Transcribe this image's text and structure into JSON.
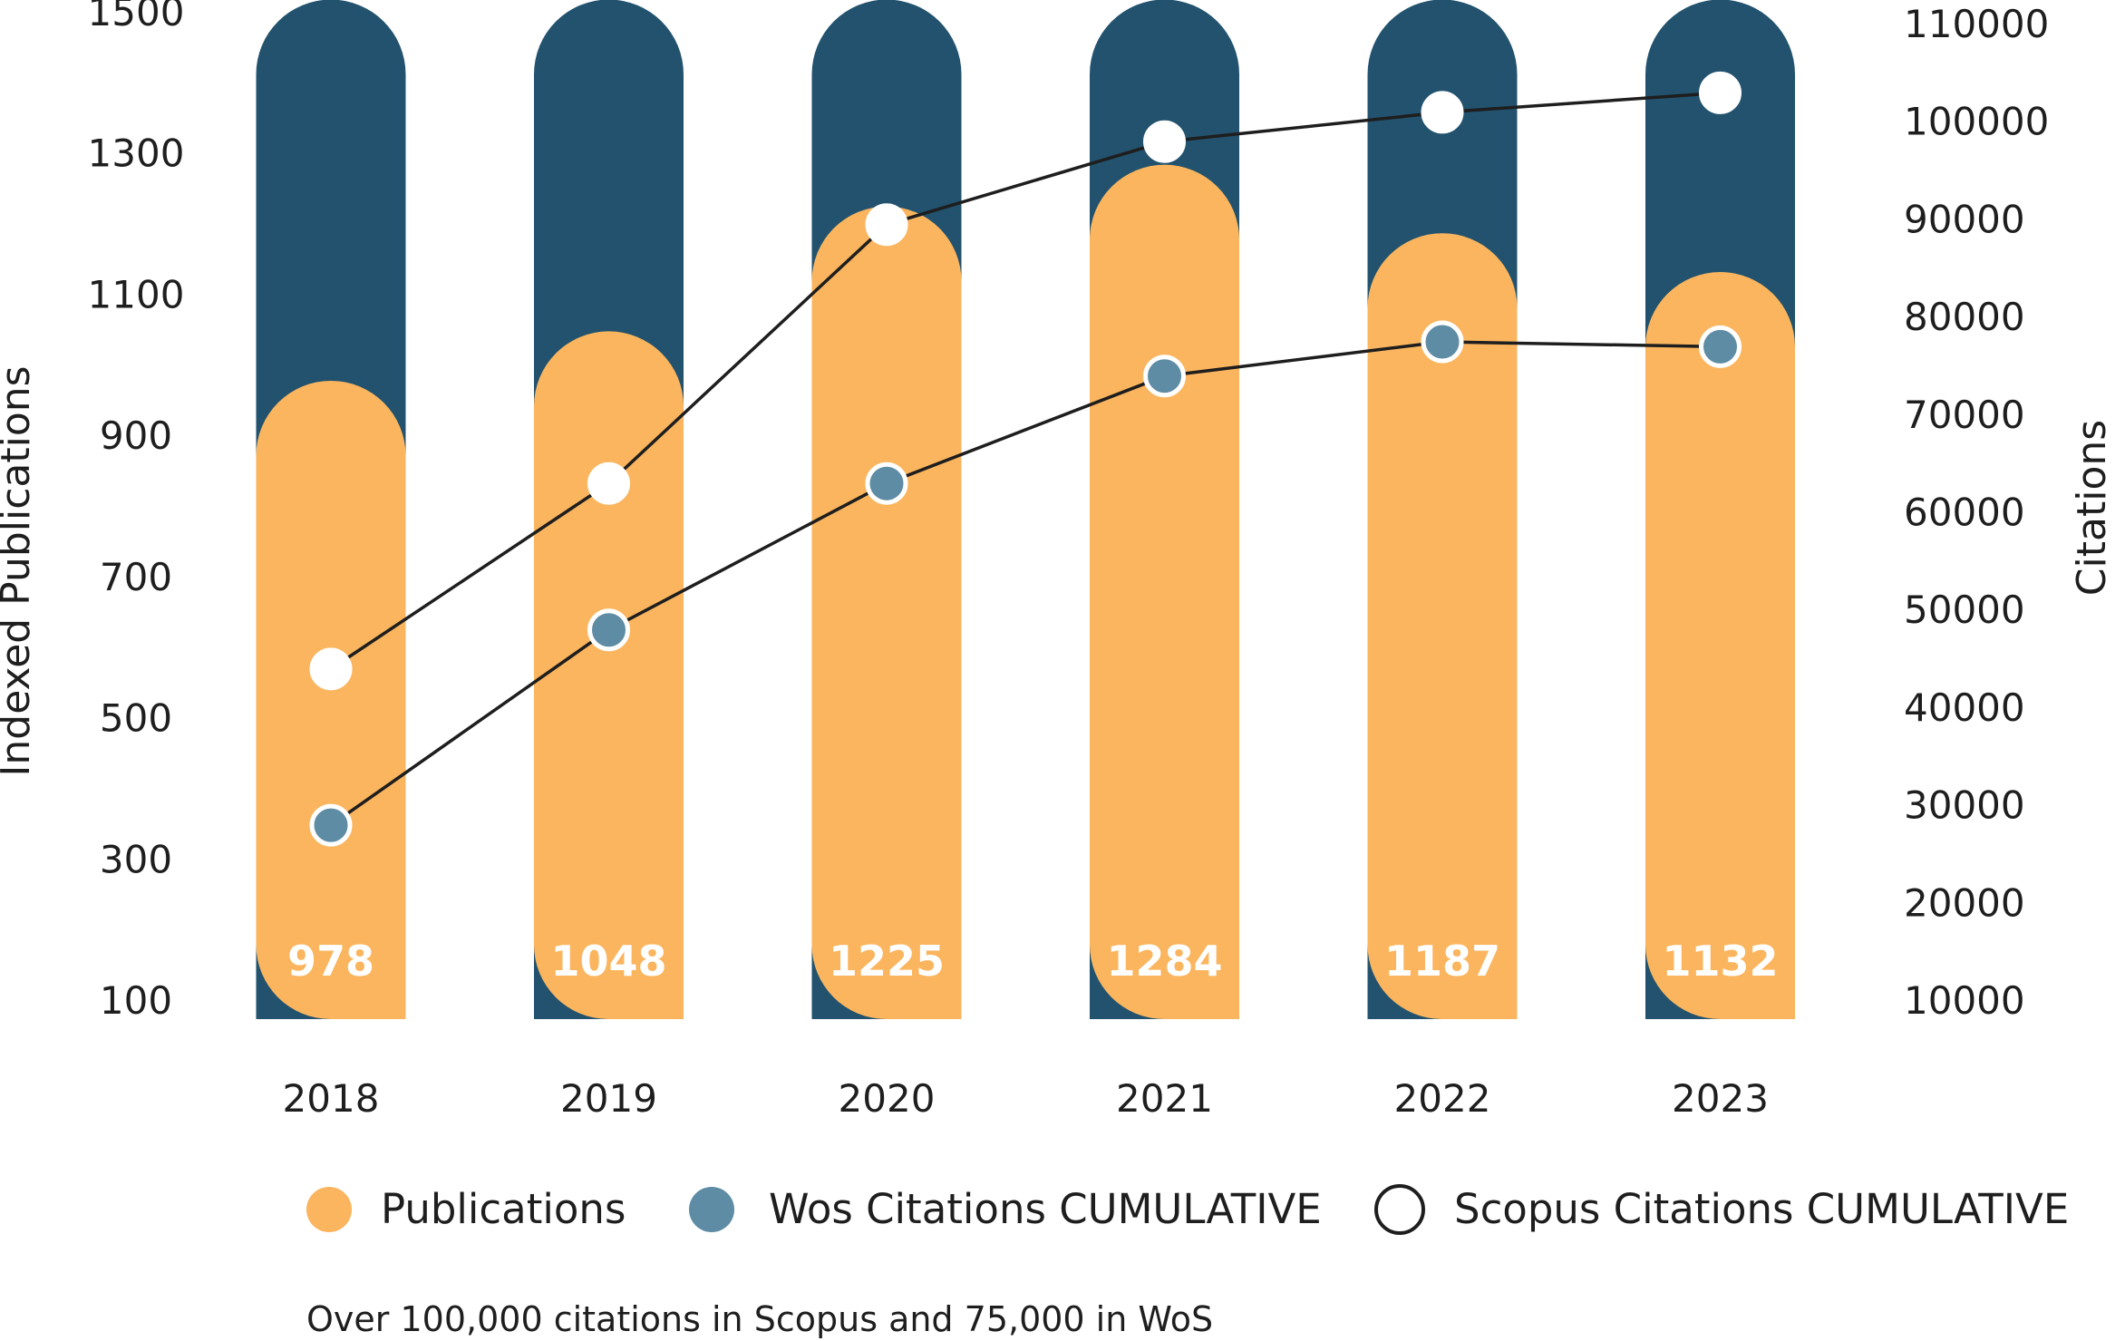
{
  "chart_data": {
    "type": "bar",
    "categories": [
      "2018",
      "2019",
      "2020",
      "2021",
      "2022",
      "2023"
    ],
    "series": [
      {
        "name": "Publications",
        "axis": "left",
        "kind": "bar",
        "values": [
          978,
          1048,
          1225,
          1284,
          1187,
          1132
        ],
        "color": "#FAB55E"
      },
      {
        "name": "Wos Citations CUMULATIVE",
        "axis": "right",
        "kind": "line",
        "values": [
          28000,
          48000,
          63000,
          74000,
          77500,
          77000
        ],
        "color": "#5E8CA4"
      },
      {
        "name": "Scopus Citations CUMULATIVE",
        "axis": "right",
        "kind": "line",
        "values": [
          44000,
          63000,
          89500,
          98000,
          101000,
          103000
        ],
        "color": "#FFFFFF"
      }
    ],
    "bar_labels": [
      "978",
      "1048",
      "1225",
      "1284",
      "1187",
      "1132"
    ],
    "left_axis": {
      "label": "Indexed Publications",
      "ticks": [
        "1500",
        "1300",
        "1100",
        "900",
        "700",
        "500",
        "300",
        "100"
      ],
      "range": [
        100,
        1500
      ]
    },
    "right_axis": {
      "label": "Citations",
      "ticks": [
        "110000",
        "100000",
        "90000",
        "80000",
        "70000",
        "60000",
        "50000",
        "40000",
        "30000",
        "20000",
        "10000"
      ],
      "range": [
        10000,
        110000
      ]
    },
    "background_bar_color": "#22526E",
    "line_color": "#1E1E1E",
    "legend_position": "bottom",
    "note": "Over 100,000 citations in Scopus and 75,000 in WoS"
  }
}
